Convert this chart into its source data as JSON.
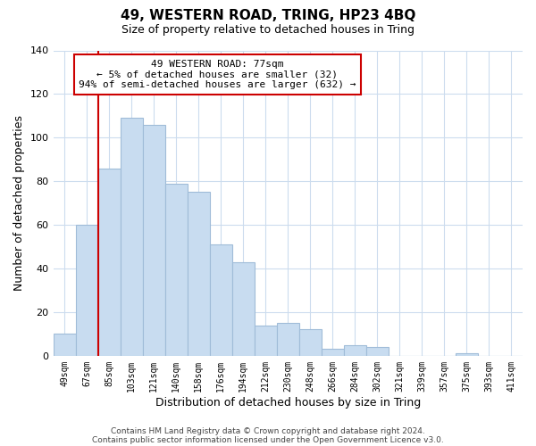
{
  "title": "49, WESTERN ROAD, TRING, HP23 4BQ",
  "subtitle": "Size of property relative to detached houses in Tring",
  "xlabel": "Distribution of detached houses by size in Tring",
  "ylabel": "Number of detached properties",
  "bar_labels": [
    "49sqm",
    "67sqm",
    "85sqm",
    "103sqm",
    "121sqm",
    "140sqm",
    "158sqm",
    "176sqm",
    "194sqm",
    "212sqm",
    "230sqm",
    "248sqm",
    "266sqm",
    "284sqm",
    "302sqm",
    "321sqm",
    "339sqm",
    "357sqm",
    "375sqm",
    "393sqm",
    "411sqm"
  ],
  "bar_values": [
    10,
    60,
    86,
    109,
    106,
    79,
    75,
    51,
    43,
    14,
    15,
    12,
    3,
    5,
    4,
    0,
    0,
    0,
    1,
    0,
    0
  ],
  "bar_color": "#c8dcf0",
  "bar_edge_color": "#a0bcd8",
  "vline_bin_index": 1,
  "vline_color": "#cc0000",
  "annotation_box_edge_color": "#cc0000",
  "annotation_title": "49 WESTERN ROAD: 77sqm",
  "annotation_line1": "← 5% of detached houses are smaller (32)",
  "annotation_line2": "94% of semi-detached houses are larger (632) →",
  "ylim": [
    0,
    140
  ],
  "yticks": [
    0,
    20,
    40,
    60,
    80,
    100,
    120,
    140
  ],
  "footer_line1": "Contains HM Land Registry data © Crown copyright and database right 2024.",
  "footer_line2": "Contains public sector information licensed under the Open Government Licence v3.0.",
  "background_color": "#ffffff",
  "grid_color": "#ccdcee"
}
